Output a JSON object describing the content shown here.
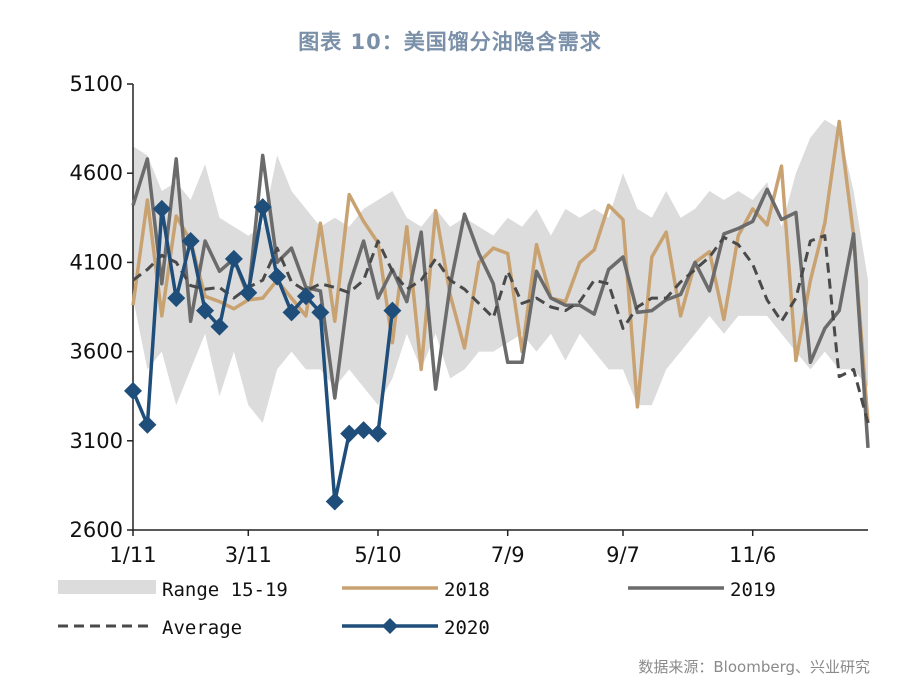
{
  "title": "图表 10：美国馏分油隐含需求",
  "source": "数据来源：Bloomberg、兴业研究",
  "chart_data": {
    "type": "line",
    "title": "图表 10：美国馏分油隐含需求",
    "ylim": [
      2600,
      5100
    ],
    "yticks": [
      2600,
      3100,
      3600,
      4100,
      4600,
      5100
    ],
    "xticks": [
      "1/11",
      "3/11",
      "5/10",
      "7/9",
      "9/7",
      "11/6"
    ],
    "xtick_weeks": [
      0,
      8,
      17,
      26,
      34,
      43
    ],
    "n_weeks": 52,
    "legend": [
      {
        "label": "Range 15-19",
        "key": "range"
      },
      {
        "label": "2018",
        "key": "s2018"
      },
      {
        "label": "2019",
        "key": "s2019"
      },
      {
        "label": "Average",
        "key": "avg"
      },
      {
        "label": "2020",
        "key": "s2020"
      }
    ],
    "colors": {
      "range": "#dcdcdc",
      "s2018": "#c9a272",
      "s2019": "#6b6b6b",
      "avg": "#4a4a4a",
      "s2020": "#1f4e7a"
    },
    "range_low": [
      3900,
      3500,
      3600,
      3300,
      3500,
      3700,
      3350,
      3600,
      3300,
      3200,
      3500,
      3600,
      3500,
      3500,
      3400,
      3500,
      3400,
      3300,
      3450,
      3700,
      3500,
      3700,
      3450,
      3500,
      3600,
      3600,
      3650,
      3700,
      3600,
      3700,
      3550,
      3700,
      3600,
      3500,
      3500,
      3300,
      3300,
      3500,
      3600,
      3700,
      3800,
      3700,
      3800,
      3800,
      3800,
      3700,
      3600,
      3500,
      3600,
      3500,
      3500,
      3400
    ],
    "range_high": [
      4750,
      4700,
      4500,
      4550,
      4450,
      4650,
      4350,
      4300,
      4250,
      4300,
      4700,
      4500,
      4400,
      4300,
      4350,
      4300,
      4400,
      4450,
      4500,
      4350,
      4300,
      4400,
      4300,
      4350,
      4300,
      4250,
      4350,
      4300,
      4400,
      4250,
      4400,
      4350,
      4400,
      4350,
      4600,
      4400,
      4350,
      4500,
      4350,
      4400,
      4500,
      4450,
      4500,
      4450,
      4550,
      4300,
      4600,
      4800,
      4900,
      4850,
      4500,
      4000
    ],
    "avg": [
      4000,
      4060,
      4140,
      4100,
      3970,
      3950,
      3960,
      3900,
      3960,
      4000,
      4180,
      3990,
      3940,
      3980,
      3960,
      3930,
      4000,
      4220,
      4050,
      3950,
      4000,
      4120,
      4000,
      3950,
      3870,
      3790,
      4050,
      3870,
      3900,
      3850,
      3830,
      3880,
      4000,
      3980,
      3730,
      3850,
      3900,
      3900,
      3990,
      4060,
      4130,
      4240,
      4200,
      4090,
      3890,
      3770,
      3900,
      4220,
      4250,
      3460,
      3500,
      3200
    ],
    "s2018": [
      3860,
      4450,
      3800,
      4360,
      4220,
      3910,
      3880,
      3840,
      3890,
      3900,
      4000,
      3900,
      3800,
      4320,
      3770,
      4480,
      4330,
      4210,
      3650,
      4300,
      3500,
      4390,
      3920,
      3620,
      4100,
      4180,
      4150,
      3600,
      4200,
      3900,
      3880,
      4100,
      4170,
      4420,
      4340,
      3290,
      4130,
      4270,
      3800,
      4100,
      4160,
      3780,
      4250,
      4400,
      4310,
      4640,
      3550,
      4000,
      4320,
      4890,
      4250,
      3200
    ],
    "s2019": [
      4420,
      4680,
      3980,
      4680,
      3770,
      4220,
      4050,
      4120,
      3910,
      4700,
      4100,
      4180,
      3960,
      3940,
      3340,
      3970,
      4220,
      3900,
      4060,
      3880,
      4270,
      3390,
      3970,
      4370,
      4150,
      3980,
      3540,
      3540,
      4050,
      3900,
      3860,
      3860,
      3810,
      4060,
      4130,
      3820,
      3830,
      3890,
      3920,
      4100,
      3940,
      4260,
      4290,
      4330,
      4510,
      4340,
      4380,
      3540,
      3730,
      3830,
      4260,
      3060
    ],
    "s2020": [
      3380,
      3190,
      4400,
      3900,
      4220,
      3830,
      3740,
      4120,
      3930,
      4410,
      4020,
      3820,
      3910,
      3820,
      2760,
      3140,
      3160,
      3140,
      3830
    ]
  }
}
